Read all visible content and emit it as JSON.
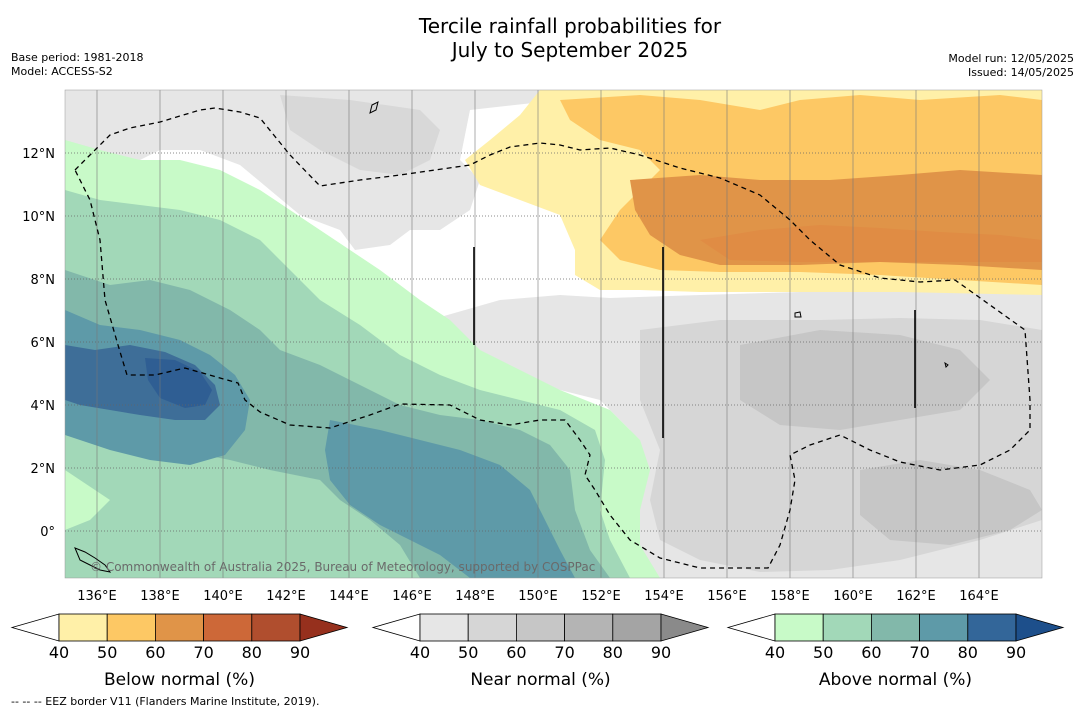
{
  "title": {
    "line1": "Tercile rainfall probabilities for",
    "line2": "July to September 2025"
  },
  "meta_left": {
    "base_period": "Base period: 1981-2018",
    "model": "Model: ACCESS-S2"
  },
  "meta_right": {
    "model_run": "Model run: 12/05/2025",
    "issued": "Issued: 14/05/2025"
  },
  "map": {
    "lat_labels": [
      "12°N",
      "10°N",
      "8°N",
      "6°N",
      "4°N",
      "2°N",
      "0°"
    ],
    "lat_values": [
      12,
      10,
      8,
      6,
      4,
      2,
      0
    ],
    "lon_labels": [
      "136°E",
      "138°E",
      "140°E",
      "142°E",
      "144°E",
      "146°E",
      "148°E",
      "150°E",
      "152°E",
      "154°E",
      "156°E",
      "158°E",
      "160°E",
      "162°E",
      "164°E"
    ],
    "lon_values": [
      136,
      138,
      140,
      142,
      144,
      146,
      148,
      150,
      152,
      154,
      156,
      158,
      160,
      162,
      164
    ],
    "credit": "© Commonwealth of Australia 2025, Bureau of Meteorology, supported by COSPPac"
  },
  "colorbars": [
    {
      "label": "Below normal (%)",
      "ticks": [
        "40",
        "50",
        "60",
        "70",
        "80",
        "90"
      ],
      "colors": [
        "#fff0a8",
        "#fdc864",
        "#e09448",
        "#cd6838",
        "#b04e2e",
        "#96301d"
      ]
    },
    {
      "label": "Near normal (%)",
      "ticks": [
        "40",
        "50",
        "60",
        "70",
        "80",
        "90"
      ],
      "colors": [
        "#e6e6e6",
        "#d6d6d6",
        "#c6c6c6",
        "#b4b4b4",
        "#a4a4a4",
        "#8a8a8a"
      ]
    },
    {
      "label": "Above normal (%)",
      "ticks": [
        "40",
        "50",
        "60",
        "70",
        "80",
        "90"
      ],
      "colors": [
        "#c8fac8",
        "#a2d8b8",
        "#82b8aa",
        "#5e9aa8",
        "#336699",
        "#1d4f8b"
      ]
    }
  ],
  "footer": "--  --  -- EEZ border V11 (Flanders Marine Institute, 2019)."
}
